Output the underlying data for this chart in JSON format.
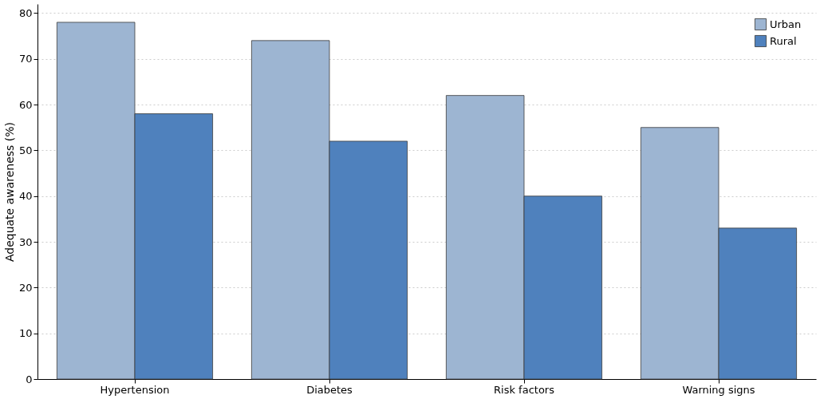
{
  "chart_data": {
    "type": "bar",
    "ylabel": "Adequate awareness (%)",
    "categories": [
      "Hypertension",
      "Diabetes",
      "Risk factors",
      "Warning signs"
    ],
    "series": [
      {
        "name": "Urban",
        "color": "#9db5d2",
        "values": [
          78,
          74,
          62,
          55
        ]
      },
      {
        "name": "Rural",
        "color": "#4f81bd",
        "values": [
          58,
          52,
          40,
          33
        ]
      }
    ],
    "ylim": [
      0,
      82
    ],
    "yticks": [
      0,
      10,
      20,
      30,
      40,
      50,
      60,
      70,
      80
    ],
    "grid": "y",
    "legend": "top right"
  }
}
